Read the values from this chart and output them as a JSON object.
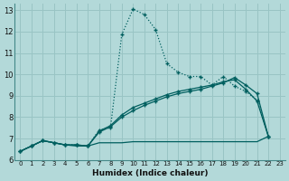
{
  "xlabel": "Humidex (Indice chaleur)",
  "bg_color": "#b3d9d9",
  "grid_color": "#99c4c4",
  "line_color": "#005f5f",
  "xlim": [
    -0.5,
    23.5
  ],
  "ylim": [
    6.0,
    13.3
  ],
  "xticks": [
    0,
    1,
    2,
    3,
    4,
    5,
    6,
    7,
    8,
    9,
    10,
    11,
    12,
    13,
    14,
    15,
    16,
    17,
    18,
    19,
    20,
    21,
    22,
    23
  ],
  "yticks": [
    6,
    7,
    8,
    9,
    10,
    11,
    12,
    13
  ],
  "line1_x": [
    0,
    1,
    2,
    3,
    4,
    5,
    6,
    7,
    8,
    9,
    10,
    11,
    12,
    13,
    14,
    15,
    16,
    17,
    18,
    19,
    20,
    21,
    22
  ],
  "line1_y": [
    6.4,
    6.65,
    6.9,
    6.8,
    6.7,
    6.7,
    6.65,
    7.4,
    7.5,
    11.85,
    13.05,
    12.8,
    12.1,
    10.5,
    10.1,
    9.9,
    9.9,
    9.5,
    9.9,
    9.45,
    9.2,
    8.8,
    7.1
  ],
  "line2_x": [
    0,
    1,
    2,
    3,
    4,
    5,
    6,
    7,
    8,
    9,
    10,
    11,
    12,
    13,
    14,
    15,
    16,
    17,
    18,
    19,
    20,
    21,
    22
  ],
  "line2_y": [
    6.4,
    6.65,
    6.9,
    6.8,
    6.7,
    6.7,
    6.65,
    7.3,
    7.55,
    8.0,
    8.3,
    8.55,
    8.75,
    8.95,
    9.1,
    9.2,
    9.3,
    9.45,
    9.6,
    9.85,
    9.5,
    9.1,
    7.1
  ],
  "line3_x": [
    0,
    1,
    2,
    3,
    4,
    5,
    6,
    7,
    8,
    9,
    10,
    11,
    12,
    13,
    14,
    15,
    16,
    17,
    18,
    19,
    20,
    21,
    22
  ],
  "line3_y": [
    6.4,
    6.65,
    6.9,
    6.8,
    6.7,
    6.7,
    6.65,
    7.35,
    7.6,
    8.1,
    8.45,
    8.65,
    8.85,
    9.05,
    9.2,
    9.3,
    9.4,
    9.5,
    9.65,
    9.75,
    9.3,
    8.75,
    7.1
  ],
  "line4_x": [
    0,
    1,
    2,
    3,
    4,
    5,
    6,
    7,
    8,
    9,
    10,
    11,
    12,
    13,
    14,
    15,
    16,
    17,
    18,
    19,
    20,
    21,
    22
  ],
  "line4_y": [
    6.4,
    6.65,
    6.9,
    6.8,
    6.7,
    6.65,
    6.65,
    6.8,
    6.8,
    6.8,
    6.85,
    6.85,
    6.85,
    6.85,
    6.85,
    6.85,
    6.85,
    6.85,
    6.85,
    6.85,
    6.85,
    6.85,
    7.1
  ]
}
